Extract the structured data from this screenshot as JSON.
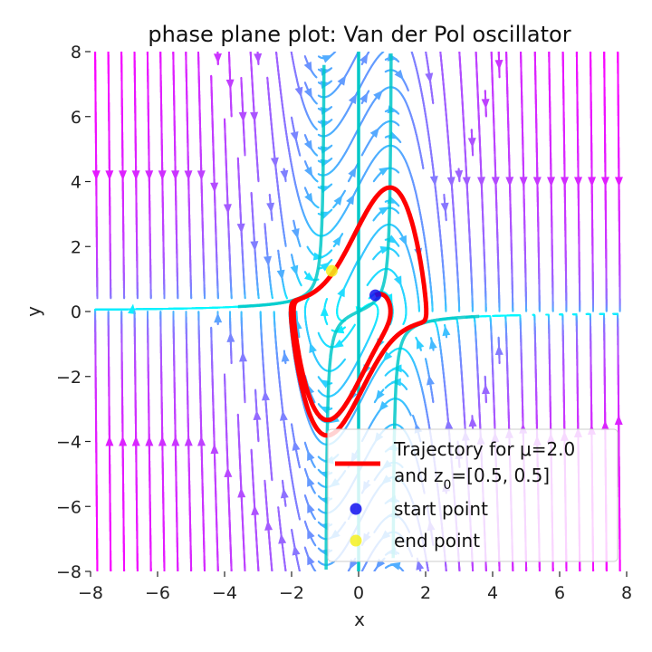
{
  "chart_data": {
    "type": "streamplot",
    "title": "phase plane plot: Van der Pol oscillator",
    "xlabel": "x",
    "ylabel": "y",
    "xlim": [
      -8,
      8
    ],
    "ylim": [
      -8,
      8
    ],
    "xticks": [
      -8,
      -6,
      -4,
      -2,
      0,
      2,
      4,
      6,
      8
    ],
    "yticks": [
      -8,
      -6,
      -4,
      -2,
      0,
      2,
      4,
      6,
      8
    ],
    "xtick_labels": [
      "−8",
      "−6",
      "−4",
      "−2",
      "0",
      "2",
      "4",
      "6",
      "8"
    ],
    "ytick_labels": [
      "−8",
      "−6",
      "−4",
      "−2",
      "0",
      "2",
      "4",
      "6",
      "8"
    ],
    "grid": false,
    "mu": 2.0,
    "z0": [
      0.5,
      0.5
    ],
    "colormap": [
      "#00ffff",
      "#ff00ff"
    ],
    "nullcline_color": "#00c8c8",
    "trajectory_color": "#ff0000",
    "start_point": {
      "x": 0.5,
      "y": 0.5,
      "color": "#1010ee"
    },
    "end_point": {
      "x": -0.8,
      "y": 1.25,
      "color": "#f5f020"
    },
    "legend": {
      "placement": "lower-right",
      "trajectory_line1": "Trajectory for μ=2.0",
      "trajectory_line2_prefix": "and z",
      "trajectory_line2_sub": "0",
      "trajectory_line2_suffix": "=[0.5, 0.5]",
      "start_label": "start point",
      "end_label": "end point"
    }
  }
}
